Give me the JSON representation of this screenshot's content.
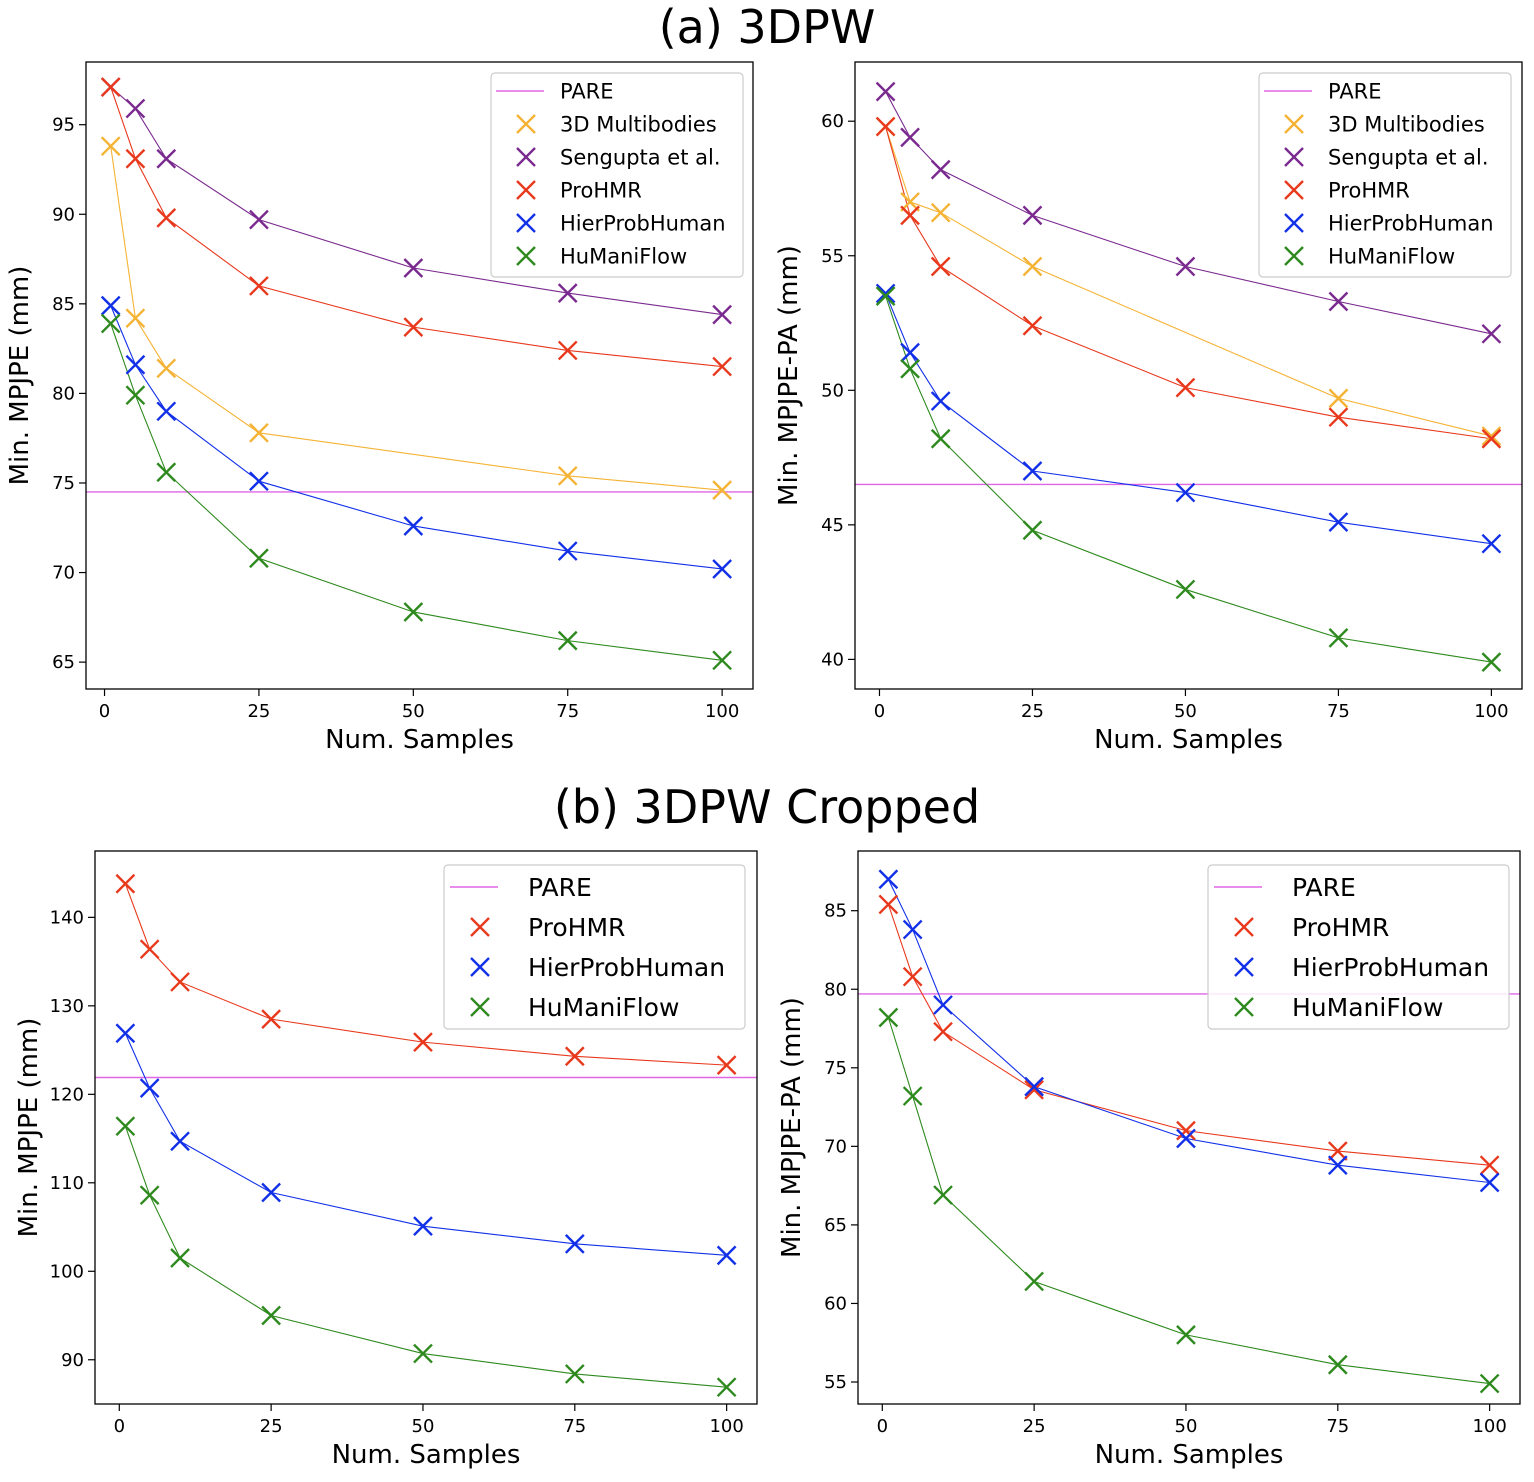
{
  "sections": {
    "a": "(a) 3DPW",
    "b": "(b) 3DPW Cropped"
  },
  "colors": {
    "PARE": "#e066e6",
    "3D Multibodies": "#f5b335",
    "Sengupta et al.": "#7a2a8f",
    "ProHMR": "#e8391d",
    "HierProbHuman": "#1230e8",
    "HuManiFlow": "#2e8a1e"
  },
  "chart_data": [
    {
      "type": "line",
      "section": "a",
      "xlabel": "Num. Samples",
      "ylabel": "Min. MPJPE (mm)",
      "xlim": [
        -3,
        105
      ],
      "ylim": [
        63.5,
        98.5
      ],
      "xticks": [
        0,
        25,
        50,
        75,
        100
      ],
      "yticks": [
        65,
        70,
        75,
        80,
        85,
        90,
        95
      ],
      "legend_position": "top-right",
      "legend": [
        "PARE",
        "3D Multibodies",
        "Sengupta et al.",
        "ProHMR",
        "HierProbHuman",
        "HuManiFlow"
      ],
      "hline": {
        "name": "PARE",
        "value": 74.5
      },
      "x": [
        1,
        5,
        10,
        25,
        50,
        75,
        100
      ],
      "series": [
        {
          "name": "3D Multibodies",
          "values": [
            93.8,
            84.2,
            81.4,
            77.8,
            null,
            75.4,
            74.6
          ]
        },
        {
          "name": "Sengupta et al.",
          "values": [
            97.1,
            95.9,
            93.1,
            89.7,
            87.0,
            85.6,
            84.4
          ]
        },
        {
          "name": "ProHMR",
          "values": [
            97.1,
            93.1,
            89.8,
            86.0,
            83.7,
            82.4,
            81.5
          ]
        },
        {
          "name": "HierProbHuman",
          "values": [
            84.9,
            81.6,
            79.0,
            75.1,
            72.6,
            71.2,
            70.2
          ]
        },
        {
          "name": "HuManiFlow",
          "values": [
            83.9,
            79.9,
            75.6,
            70.8,
            67.8,
            66.2,
            65.1
          ]
        }
      ]
    },
    {
      "type": "line",
      "section": "a",
      "xlabel": "Num. Samples",
      "ylabel": "Min. MPJPE-PA (mm)",
      "xlim": [
        -4,
        105
      ],
      "ylim": [
        38.9,
        62.2
      ],
      "xticks": [
        0,
        25,
        50,
        75,
        100
      ],
      "yticks": [
        40,
        45,
        50,
        55,
        60
      ],
      "legend_position": "top-right",
      "legend": [
        "PARE",
        "3D Multibodies",
        "Sengupta et al.",
        "ProHMR",
        "HierProbHuman",
        "HuManiFlow"
      ],
      "hline": {
        "name": "PARE",
        "value": 46.5
      },
      "x": [
        1,
        5,
        10,
        25,
        50,
        75,
        100
      ],
      "series": [
        {
          "name": "3D Multibodies",
          "values": [
            59.8,
            57.0,
            56.6,
            54.6,
            null,
            49.7,
            48.3
          ]
        },
        {
          "name": "Sengupta et al.",
          "values": [
            61.1,
            59.4,
            58.2,
            56.5,
            54.6,
            53.3,
            52.1
          ]
        },
        {
          "name": "ProHMR",
          "values": [
            59.8,
            56.5,
            54.6,
            52.4,
            50.1,
            49.0,
            48.2
          ]
        },
        {
          "name": "HierProbHuman",
          "values": [
            53.6,
            51.4,
            49.6,
            47.0,
            46.2,
            45.1,
            44.3
          ]
        },
        {
          "name": "HuManiFlow",
          "values": [
            53.5,
            50.8,
            48.2,
            44.8,
            42.6,
            40.8,
            39.9
          ]
        }
      ]
    },
    {
      "type": "line",
      "section": "b",
      "xlabel": "Num. Samples",
      "ylabel": "Min. MPJPE (mm)",
      "xlim": [
        -4,
        105
      ],
      "ylim": [
        85.0,
        147.5
      ],
      "xticks": [
        0,
        25,
        50,
        75,
        100
      ],
      "yticks": [
        90,
        100,
        110,
        120,
        130,
        140
      ],
      "legend_position": "top-right",
      "legend": [
        "PARE",
        "ProHMR",
        "HierProbHuman",
        "HuManiFlow"
      ],
      "hline": {
        "name": "PARE",
        "value": 121.9
      },
      "x": [
        1,
        5,
        10,
        25,
        50,
        75,
        100
      ],
      "series": [
        {
          "name": "ProHMR",
          "values": [
            143.8,
            136.4,
            132.7,
            128.5,
            125.9,
            124.3,
            123.3
          ]
        },
        {
          "name": "HierProbHuman",
          "values": [
            126.9,
            120.7,
            114.7,
            108.9,
            105.1,
            103.1,
            101.8
          ]
        },
        {
          "name": "HuManiFlow",
          "values": [
            116.4,
            108.6,
            101.5,
            95.0,
            90.7,
            88.4,
            86.9
          ]
        }
      ]
    },
    {
      "type": "line",
      "section": "b",
      "xlabel": "Num. Samples",
      "ylabel": "Min. MPJPE-PA (mm)",
      "xlim": [
        -4,
        105
      ],
      "ylim": [
        53.6,
        88.8
      ],
      "xticks": [
        0,
        25,
        50,
        75,
        100
      ],
      "yticks": [
        55,
        60,
        65,
        70,
        75,
        80,
        85
      ],
      "legend_position": "top-right",
      "legend": [
        "PARE",
        "ProHMR",
        "HierProbHuman",
        "HuManiFlow"
      ],
      "hline": {
        "name": "PARE",
        "value": 79.7
      },
      "x": [
        1,
        5,
        10,
        25,
        50,
        75,
        100
      ],
      "series": [
        {
          "name": "ProHMR",
          "values": [
            85.4,
            80.8,
            77.3,
            73.6,
            71.0,
            69.7,
            68.8
          ]
        },
        {
          "name": "HierProbHuman",
          "values": [
            87.0,
            83.8,
            79.0,
            73.8,
            70.5,
            68.8,
            67.7
          ]
        },
        {
          "name": "HuManiFlow",
          "values": [
            78.2,
            73.2,
            66.9,
            61.4,
            58.0,
            56.1,
            54.9
          ]
        }
      ]
    }
  ]
}
